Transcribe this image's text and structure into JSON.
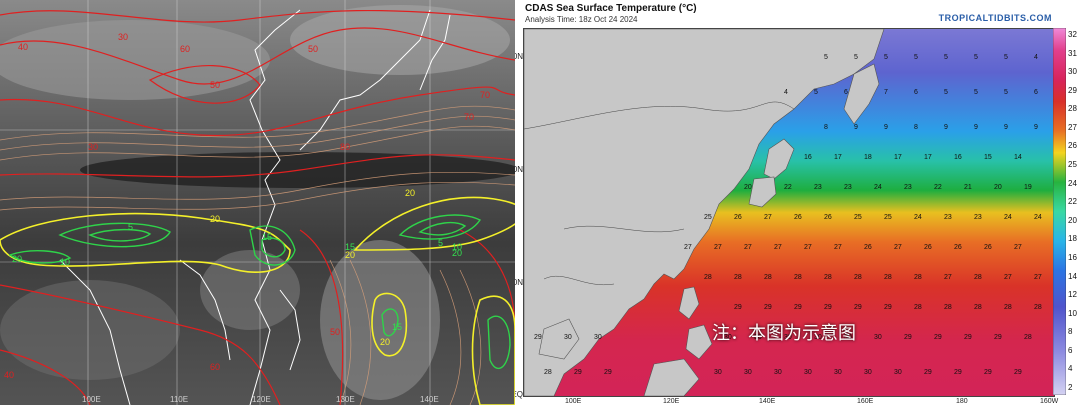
{
  "left_panel": {
    "longitude_labels": [
      "100E",
      "110E",
      "120E",
      "130E",
      "140E"
    ],
    "contour_labels_red": [
      "40",
      "30",
      "60",
      "50",
      "30",
      "80",
      "70",
      "60",
      "50",
      "40",
      "70",
      "50"
    ],
    "contour_labels_green": [
      "5",
      "5",
      "10",
      "15",
      "10",
      "20",
      "15",
      "15",
      "20"
    ],
    "contour_labels_yellow": [
      "20",
      "20",
      "20",
      "20"
    ]
  },
  "right_panel": {
    "title": "CDAS Sea Surface Temperature (°C)",
    "subtitle": "Analysis Time: 18z Oct 24 2024",
    "brand": "TROPICALTIDBITS.COM",
    "notice": "注：本图为示意图",
    "latitude_labels": [
      "0N",
      "0N",
      "0N",
      "EQ"
    ],
    "longitude_labels": [
      "100E",
      "120E",
      "140E",
      "160E",
      "180",
      "160W"
    ],
    "colorbar_labels": [
      "32",
      "31",
      "30",
      "29",
      "28",
      "27",
      "26",
      "25",
      "24",
      "22",
      "20",
      "18",
      "16",
      "14",
      "12",
      "10",
      "8",
      "6",
      "4",
      "2"
    ],
    "colors": {
      "land": "#c7c7c7",
      "sst_cold": "#6e6fd0",
      "sst_mid": "#1fbf4f",
      "sst_warm": "#e0372a",
      "sst_hot": "#d8245c"
    }
  }
}
